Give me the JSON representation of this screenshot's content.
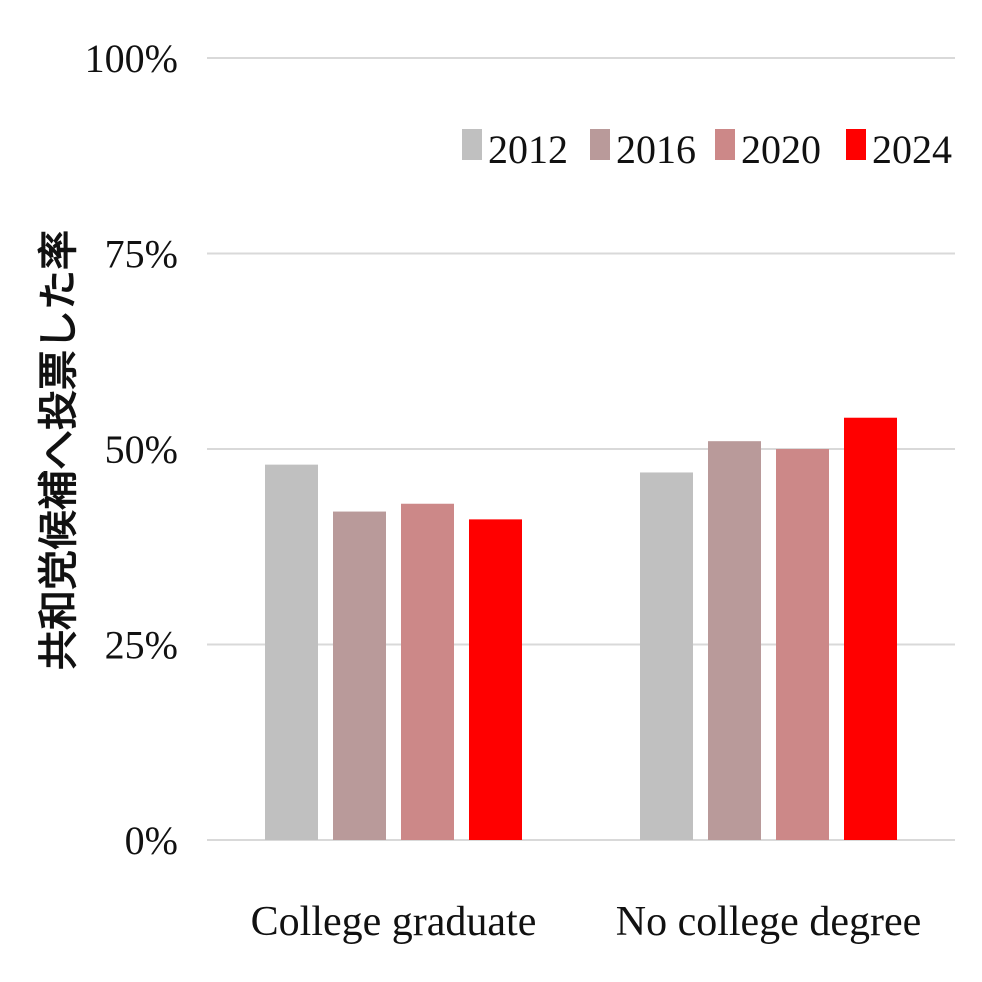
{
  "chart_data": {
    "type": "bar",
    "categories": [
      "College graduate",
      "No college degree"
    ],
    "series": [
      {
        "name": "2012",
        "values": [
          48,
          47
        ],
        "color": "#c0c0c0"
      },
      {
        "name": "2016",
        "values": [
          42,
          51
        ],
        "color": "#b99a9a"
      },
      {
        "name": "2020",
        "values": [
          43,
          50
        ],
        "color": "#cc8888"
      },
      {
        "name": "2024",
        "values": [
          41,
          54
        ],
        "color": "#ff0000"
      }
    ],
    "ylabel": "共和党候補へ投票した率",
    "ylim": [
      0,
      100
    ],
    "yticks": [
      "0%",
      "25%",
      "50%",
      "75%",
      "100%"
    ],
    "ytick_values": [
      0,
      25,
      50,
      75,
      100
    ],
    "grid": true,
    "grid_color": "#d9d9d9",
    "legend_position": "top-right"
  }
}
